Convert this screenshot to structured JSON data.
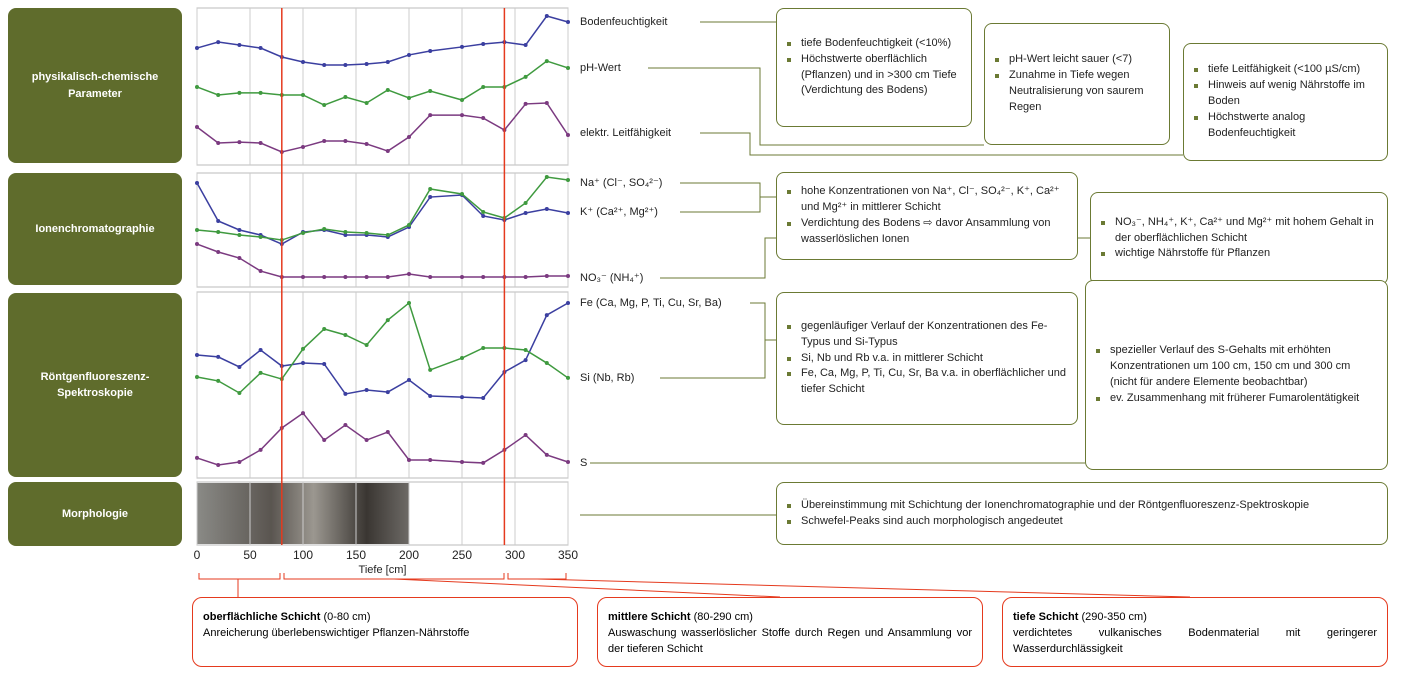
{
  "row_labels": [
    "physikalisch-chemische Parameter",
    "Ionenchromatographie",
    "Röntgenfluoreszenz-Spektroskopie",
    "Morphologie"
  ],
  "chart_data": [
    {
      "type": "line",
      "x": [
        0,
        20,
        40,
        60,
        80,
        100,
        120,
        140,
        160,
        180,
        200,
        220,
        250,
        270,
        290,
        310,
        330,
        350
      ],
      "xlim": [
        0,
        350
      ],
      "xticks": [
        0,
        50,
        100,
        150,
        200,
        250,
        300,
        350
      ],
      "ylim": [
        0,
        100
      ],
      "series": [
        {
          "name": "Bodenfeuchtigkeit",
          "color": "#3b3fa0",
          "values": [
            74.5,
            78.3,
            76.4,
            74.5,
            68.8,
            65.6,
            63.7,
            63.7,
            64.3,
            65.6,
            70.1,
            72.6,
            75.2,
            77.1,
            78.3,
            76.4,
            94.9,
            91.1
          ]
        },
        {
          "name": "pH-Wert",
          "color": "#3f9a3f",
          "values": [
            49.7,
            44.6,
            45.9,
            45.9,
            44.6,
            44.6,
            38.2,
            43.3,
            39.5,
            47.8,
            42.7,
            47.1,
            41.4,
            49.7,
            49.7,
            56.1,
            66.2,
            61.8
          ]
        },
        {
          "name": "elektr. Leitfähigkeit",
          "color": "#7b3a80",
          "values": [
            24.2,
            14.0,
            14.6,
            14.0,
            8.3,
            11.5,
            15.3,
            15.3,
            13.4,
            8.9,
            17.8,
            31.8,
            31.8,
            29.9,
            22.3,
            38.9,
            39.5,
            19.1
          ]
        }
      ]
    },
    {
      "type": "line",
      "x": [
        0,
        20,
        40,
        60,
        80,
        100,
        120,
        140,
        160,
        180,
        200,
        220,
        250,
        270,
        290,
        310,
        330,
        350
      ],
      "xlim": [
        0,
        350
      ],
      "xticks": [
        0,
        50,
        100,
        150,
        200,
        250,
        300,
        350
      ],
      "ylim": [
        0,
        100
      ],
      "series": [
        {
          "name": "Na⁺ (Cl⁻, SO₄²⁻)",
          "color": "#3b3fa0",
          "values": [
            91.2,
            57.9,
            50,
            45.6,
            37.7,
            48.2,
            50,
            45.6,
            45.6,
            43.9,
            52.6,
            78.9,
            80.7,
            62.3,
            58.8,
            64.9,
            68.4,
            64.9
          ]
        },
        {
          "name": "K⁺ (Ca²⁺, Mg²⁺)",
          "color": "#3f9a3f",
          "values": [
            50,
            48.2,
            45.6,
            43.9,
            41.2,
            47.4,
            50.9,
            48.2,
            47.4,
            45.6,
            54.4,
            86,
            81.6,
            65.8,
            60.5,
            73.7,
            96.5,
            93.9
          ]
        },
        {
          "name": "NO₃⁻ (NH₄⁺)",
          "color": "#7b3a80",
          "values": [
            37.7,
            30.7,
            25.4,
            14,
            8.8,
            8.8,
            8.8,
            8.8,
            8.8,
            8.8,
            11.4,
            8.8,
            8.8,
            8.8,
            8.8,
            8.8,
            9.6,
            9.6
          ]
        }
      ]
    },
    {
      "type": "line",
      "x": [
        0,
        20,
        40,
        60,
        80,
        100,
        120,
        140,
        160,
        180,
        200,
        220,
        250,
        270,
        290,
        310,
        330,
        350
      ],
      "xlim": [
        0,
        350
      ],
      "xticks": [
        0,
        50,
        100,
        150,
        200,
        250,
        300,
        350
      ],
      "ylim": [
        0,
        100
      ],
      "xlabel": "Tiefe [cm]",
      "series": [
        {
          "name": "Fe (Ca, Mg, P, Ti, Cu, Sr, Ba)",
          "color": "#3b3fa0",
          "values": [
            66.1,
            65.1,
            59.7,
            68.8,
            60.2,
            61.8,
            61.3,
            45.2,
            47.3,
            46.2,
            52.7,
            44.1,
            43.5,
            43,
            57,
            63.4,
            87.6,
            94.1
          ]
        },
        {
          "name": "Si (Nb, Rb)",
          "color": "#3f9a3f",
          "values": [
            54.3,
            52.2,
            45.7,
            56.5,
            53.2,
            69.4,
            80.1,
            76.9,
            71.5,
            84.9,
            94.1,
            58.1,
            64.5,
            69.9,
            69.9,
            68.8,
            61.8,
            53.8
          ]
        },
        {
          "name": "S",
          "color": "#7b3a80",
          "values": [
            10.8,
            7,
            8.6,
            15.1,
            26.9,
            34.9,
            20.4,
            28.5,
            20.4,
            24.7,
            9.7,
            9.7,
            8.6,
            8.1,
            15.1,
            23.1,
            12.4,
            8.6
          ]
        }
      ]
    }
  ],
  "layer_bounds": [
    80,
    290
  ],
  "notes": [
    {
      "bullets": [
        "tiefe Bodenfeuchtigkeit (<10%)",
        "Höchstwerte oberflächlich (Pflanzen) und in >300 cm Tiefe (Verdichtung des Bodens)"
      ]
    },
    {
      "bullets": [
        "pH-Wert leicht sauer (<7)",
        "Zunahme in Tiefe wegen Neutralisierung von saurem Regen"
      ]
    },
    {
      "bullets": [
        "tiefe Leitfähigkeit (<100 µS/cm)",
        "Hinweis auf wenig Nährstoffe im Boden",
        "Höchstwerte analog Bodenfeuchtigkeit"
      ]
    },
    {
      "bullets": [
        "hohe Konzentrationen von Na⁺, Cl⁻, SO₄²⁻, K⁺, Ca²⁺ und Mg²⁺ in mittlerer Schicht",
        "Verdichtung des Bodens ⇨ davor Ansammlung von wasserlöslichen Ionen"
      ]
    },
    {
      "bullets": [
        "NO₃⁻, NH₄⁺, K⁺, Ca²⁺ und Mg²⁺ mit hohem Gehalt in der oberflächlichen Schicht",
        "wichtige Nährstoffe für Pflanzen"
      ]
    },
    {
      "bullets": [
        "gegenläufiger Verlauf der Konzentrationen des Fe-Typus und Si-Typus",
        "Si, Nb und Rb v.a. in mittlerer Schicht",
        "Fe, Ca, Mg, P, Ti, Cu, Sr, Ba v.a. in oberflächlicher und tiefer Schicht"
      ]
    },
    {
      "bullets": [
        "spezieller Verlauf des S-Gehalts mit erhöhten Konzentrationen um 100 cm, 150 cm und 300 cm (nicht für andere Elemente beobachtbar)",
        "ev. Zusammenhang mit früherer Fumarolentätigkeit"
      ]
    },
    {
      "bullets": [
        "Übereinstimmung mit Schichtung der Ionenchromatographie und der Röntgenfluoreszenz-Spektroskopie",
        "Schwefel-Peaks sind auch morphologisch angedeutet"
      ]
    }
  ],
  "layers": [
    {
      "name": "oberflächliche Schicht",
      "range": "(0-80 cm)",
      "text": "Anreicherung überlebenswichtiger Pflanzen-Nährstoffe"
    },
    {
      "name": "mittlere Schicht",
      "range": "(80-290 cm)",
      "text": "Auswaschung wasserlöslicher Stoffe durch Regen und Ansammlung vor der tieferen Schicht"
    },
    {
      "name": "tiefe Schicht",
      "range": "(290-350 cm)",
      "text": "verdichtetes vulkanisches Bodenmaterial mit geringerer Wasserdurchlässigkeit"
    }
  ]
}
